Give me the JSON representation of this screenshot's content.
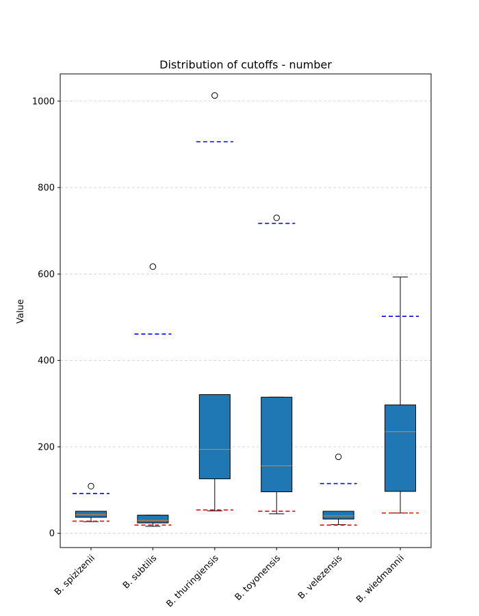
{
  "chart_data": {
    "type": "box",
    "title": "Distribution of cutoffs - number",
    "xlabel": "",
    "ylabel": "Value",
    "ylim": [
      -33,
      1063
    ],
    "yticks": [
      0,
      200,
      400,
      600,
      800,
      1000
    ],
    "grid": "horizontal dashed",
    "colors": {
      "box_fill": "#1f77b4",
      "median": "#ff7f0e",
      "upper_reference": "#0000ff",
      "lower_reference": "#ff0000",
      "grid": "#cccccc"
    },
    "categories": [
      "B. spizizenii",
      "B. subtilis",
      "B. thuringiensis",
      "B. toyonensis",
      "B. velezensis",
      "B. wiedmannii"
    ],
    "boxes": [
      {
        "whisker_low": 27,
        "q1": 37,
        "median": 43,
        "q3": 51,
        "whisker_high": 51,
        "outliers": [
          109
        ],
        "upper_reference": 92,
        "lower_reference": 28
      },
      {
        "whisker_low": 16,
        "q1": 24,
        "median": 30,
        "q3": 42,
        "whisker_high": 42,
        "outliers": [
          617
        ],
        "upper_reference": 461,
        "lower_reference": 19
      },
      {
        "whisker_low": 52,
        "q1": 126,
        "median": 194,
        "q3": 321,
        "whisker_high": 321,
        "outliers": [
          1013
        ],
        "upper_reference": 906,
        "lower_reference": 54
      },
      {
        "whisker_low": 45,
        "q1": 96,
        "median": 156,
        "q3": 315,
        "whisker_high": 315,
        "outliers": [
          730
        ],
        "upper_reference": 717,
        "lower_reference": 51
      },
      {
        "whisker_low": 20,
        "q1": 33,
        "median": 40,
        "q3": 51,
        "whisker_high": 51,
        "outliers": [
          177
        ],
        "upper_reference": 115,
        "lower_reference": 19
      },
      {
        "whisker_low": 47,
        "q1": 97,
        "median": 235,
        "q3": 297,
        "whisker_high": 593,
        "outliers": [],
        "upper_reference": 502,
        "lower_reference": 47
      }
    ]
  }
}
